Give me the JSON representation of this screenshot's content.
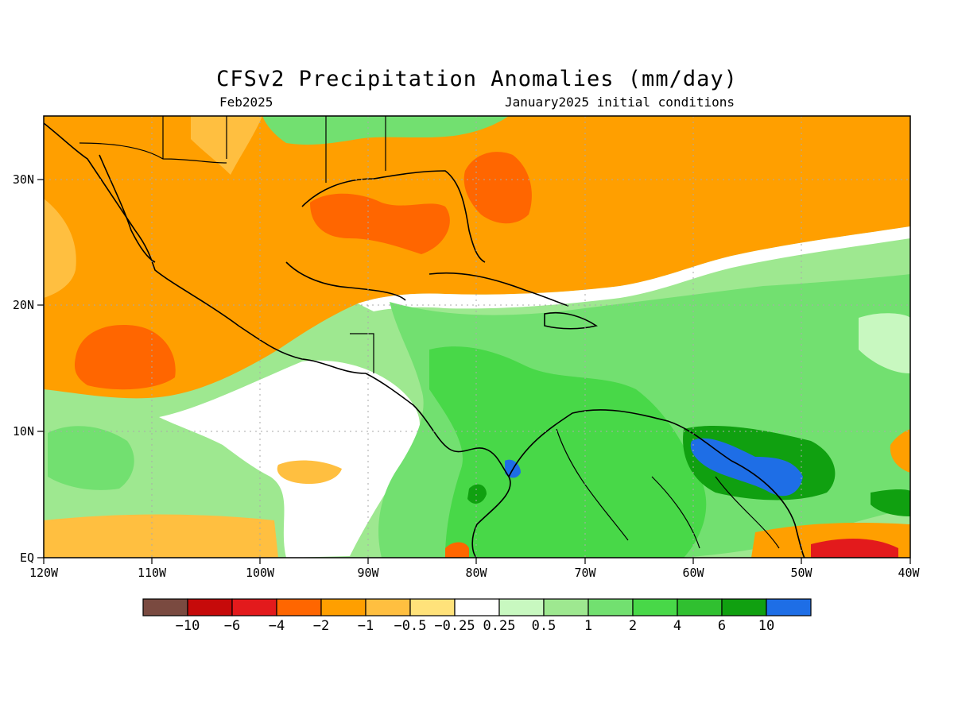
{
  "map": {
    "title": "CFSv2 Precipitation Anomalies (mm/day)",
    "subtitle_left": "Feb2025",
    "subtitle_right": "January2025 initial conditions",
    "lon_ticks": [
      "120W",
      "110W",
      "100W",
      "90W",
      "80W",
      "70W",
      "60W",
      "50W",
      "40W"
    ],
    "lat_ticks": [
      "30N",
      "20N",
      "10N",
      "EQ"
    ],
    "lon_range": [
      -120,
      -40
    ],
    "lat_range": [
      0,
      35
    ]
  },
  "legend": {
    "labels": [
      "−10",
      "−6",
      "−4",
      "−2",
      "−1",
      "−0.5",
      "−0.25",
      "0.25",
      "0.5",
      "1",
      "2",
      "4",
      "6",
      "10"
    ],
    "colors": [
      "#7a4a40",
      "#c60a0a",
      "#e31a1c",
      "#ff6600",
      "#ff9f00",
      "#ffbf40",
      "#ffe27a",
      "#ffffff",
      "#c8f8c0",
      "#9ee890",
      "#72e070",
      "#48d848",
      "#30c030",
      "#10a010",
      "#1e6ee6"
    ]
  }
}
